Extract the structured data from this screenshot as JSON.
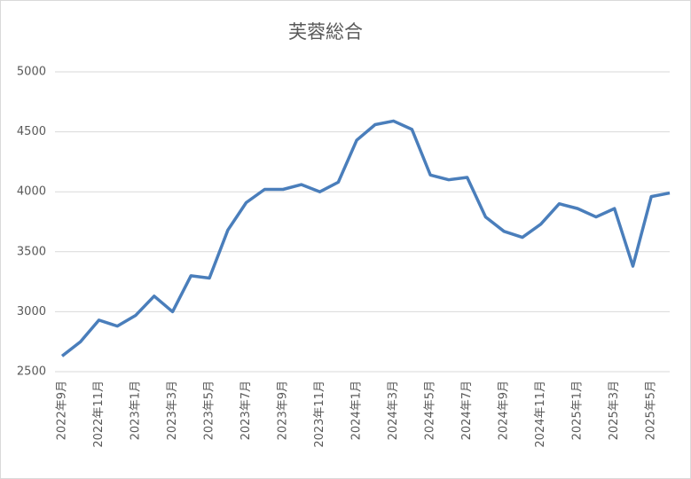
{
  "chart_data": {
    "type": "line",
    "title": "芙蓉総合",
    "categories": [
      "2022年9月",
      null,
      "2022年11月",
      null,
      "2023年1月",
      null,
      "2023年3月",
      null,
      "2023年5月",
      null,
      "2023年7月",
      null,
      "2023年9月",
      null,
      "2023年11月",
      null,
      "2024年1月",
      null,
      "2024年3月",
      null,
      "2024年5月",
      null,
      "2024年7月",
      null,
      "2024年9月",
      null,
      "2024年11月",
      null,
      "2025年1月",
      null,
      "2025年3月",
      null,
      "2025年5月",
      null
    ],
    "series": [
      {
        "name": "芙蓉総合",
        "color": "#4a7ebb",
        "values": [
          2630,
          2750,
          2930,
          2880,
          2970,
          3130,
          3000,
          3300,
          3280,
          3680,
          3910,
          4020,
          4020,
          4060,
          4000,
          4080,
          4430,
          4560,
          4590,
          4520,
          4140,
          4100,
          4120,
          3790,
          3670,
          3620,
          3730,
          3900,
          3860,
          3790,
          3860,
          3380,
          3960,
          3990
        ]
      }
    ],
    "ylim": [
      2500,
      5000
    ],
    "yticks": [
      2500,
      3000,
      3500,
      4000,
      4500,
      5000
    ],
    "grid": true
  }
}
